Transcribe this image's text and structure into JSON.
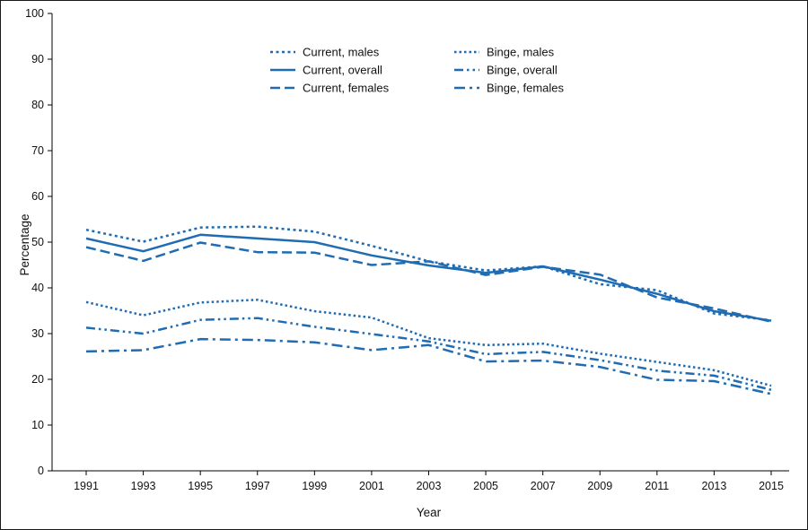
{
  "figure": {
    "xlabel": "Year",
    "ylabel": "Percentage"
  },
  "chart_data": {
    "type": "line",
    "title": "",
    "xlabel": "Year",
    "ylabel": "Percentage",
    "x": [
      1991,
      1993,
      1995,
      1997,
      1999,
      2001,
      2003,
      2005,
      2007,
      2009,
      2011,
      2013,
      2015
    ],
    "ylim": [
      0,
      100
    ],
    "ytick_step": 10,
    "grid": false,
    "legend_position": "top-center-two-columns",
    "line_color": "#1f6cb2",
    "series": [
      {
        "name": "Current, males",
        "dash": "3 3.5",
        "values": [
          52.7,
          50.1,
          53.2,
          53.4,
          52.3,
          49.2,
          45.8,
          43.8,
          44.7,
          40.8,
          39.5,
          34.4,
          32.9
        ]
      },
      {
        "name": "Current, overall",
        "dash": "",
        "values": [
          50.8,
          48.0,
          51.6,
          50.8,
          50.0,
          47.1,
          44.9,
          43.3,
          44.7,
          41.8,
          38.7,
          34.9,
          32.8
        ]
      },
      {
        "name": "Current, females",
        "dash": "11 5",
        "values": [
          48.9,
          45.9,
          49.9,
          47.8,
          47.7,
          45.0,
          45.8,
          42.8,
          44.6,
          42.9,
          37.9,
          35.5,
          32.6
        ]
      },
      {
        "name": "Binge, males",
        "dash": "2.5 3",
        "values": [
          36.9,
          34.0,
          36.8,
          37.4,
          34.9,
          33.5,
          29.0,
          27.5,
          27.8,
          25.6,
          23.8,
          22.0,
          18.6
        ]
      },
      {
        "name": "Binge, overall",
        "dash": "10 4 2.5 4 2.5 4",
        "values": [
          31.3,
          30.0,
          33.0,
          33.4,
          31.5,
          29.9,
          28.3,
          25.5,
          26.0,
          24.2,
          21.9,
          20.8,
          17.7
        ]
      },
      {
        "name": "Binge, females",
        "dash": "12 5 3 5",
        "values": [
          26.1,
          26.4,
          28.8,
          28.6,
          28.1,
          26.4,
          27.5,
          23.9,
          24.1,
          22.7,
          19.9,
          19.6,
          16.8
        ]
      }
    ],
    "legend_columns": [
      [
        0,
        1,
        2
      ],
      [
        3,
        4,
        5
      ]
    ]
  }
}
